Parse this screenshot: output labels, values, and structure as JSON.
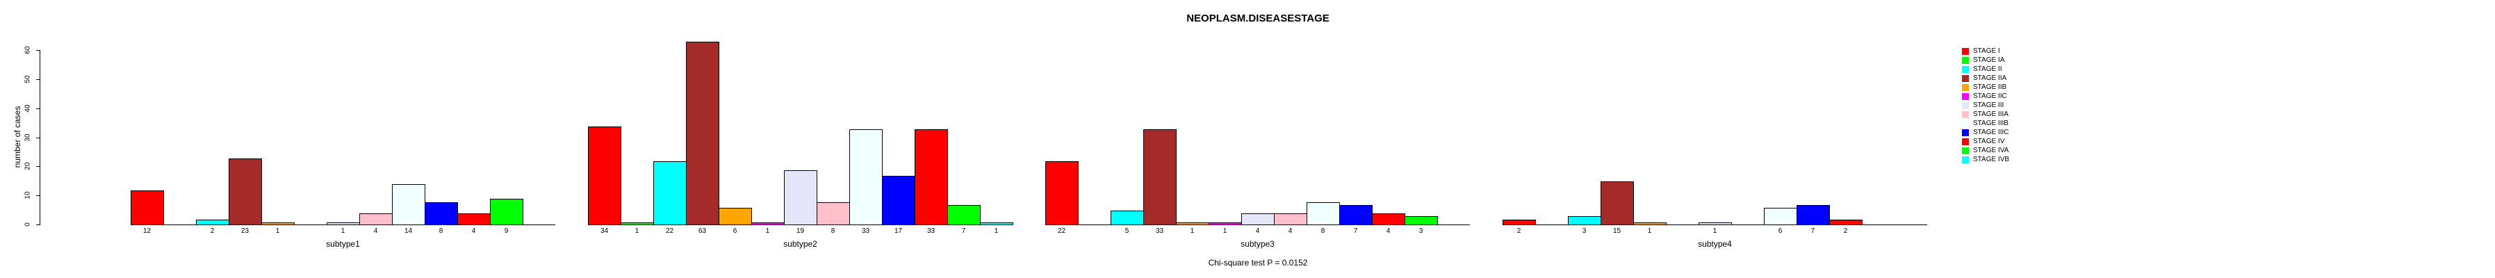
{
  "title": "NEOPLASM.DISEASESTAGE",
  "footer": "Chi-square test P = 0.0152",
  "y_axis": {
    "label": "number of cases",
    "ticks": [
      0,
      10,
      20,
      30,
      40,
      50,
      60
    ]
  },
  "chart_data": {
    "type": "bar",
    "title": "NEOPLASM.DISEASESTAGE",
    "xlabel": "",
    "ylabel": "number of cases",
    "ylim": [
      0,
      60
    ],
    "grid": false,
    "legend_position": "right",
    "annotation": "Chi-square test P = 0.0152",
    "categories": [
      "subtype1",
      "subtype2",
      "subtype3",
      "subtype4"
    ],
    "series": [
      {
        "name": "STAGE I",
        "color": "#FF0000",
        "values": [
          12,
          34,
          22,
          2
        ]
      },
      {
        "name": "STAGE IA",
        "color": "#00FF00",
        "values": [
          0,
          1,
          0,
          0
        ]
      },
      {
        "name": "STAGE II",
        "color": "#00FFFF",
        "values": [
          2,
          22,
          5,
          3
        ]
      },
      {
        "name": "STAGE IIA",
        "color": "#A52A2A",
        "values": [
          23,
          63,
          33,
          15
        ]
      },
      {
        "name": "STAGE IIB",
        "color": "#FFA500",
        "values": [
          1,
          6,
          1,
          1
        ]
      },
      {
        "name": "STAGE IIC",
        "color": "#FF00FF",
        "values": [
          0,
          1,
          1,
          0
        ]
      },
      {
        "name": "STAGE III",
        "color": "#E6E6FA",
        "values": [
          1,
          19,
          4,
          1
        ]
      },
      {
        "name": "STAGE IIIA",
        "color": "#FFC0CB",
        "values": [
          4,
          8,
          4,
          0
        ]
      },
      {
        "name": "STAGE IIIB",
        "color": "#F0FFFF",
        "values": [
          14,
          33,
          8,
          6
        ]
      },
      {
        "name": "STAGE IIIC",
        "color": "#0000FF",
        "values": [
          8,
          17,
          7,
          7
        ]
      },
      {
        "name": "STAGE IV",
        "color": "#FF0000",
        "values": [
          4,
          33,
          4,
          2
        ]
      },
      {
        "name": "STAGE IVA",
        "color": "#00FF00",
        "values": [
          9,
          7,
          3,
          0
        ]
      },
      {
        "name": "STAGE IVB",
        "color": "#00FFFF",
        "values": [
          0,
          1,
          0,
          0
        ]
      }
    ],
    "bar_value_labels_shown_only_when_nonzero": true
  }
}
